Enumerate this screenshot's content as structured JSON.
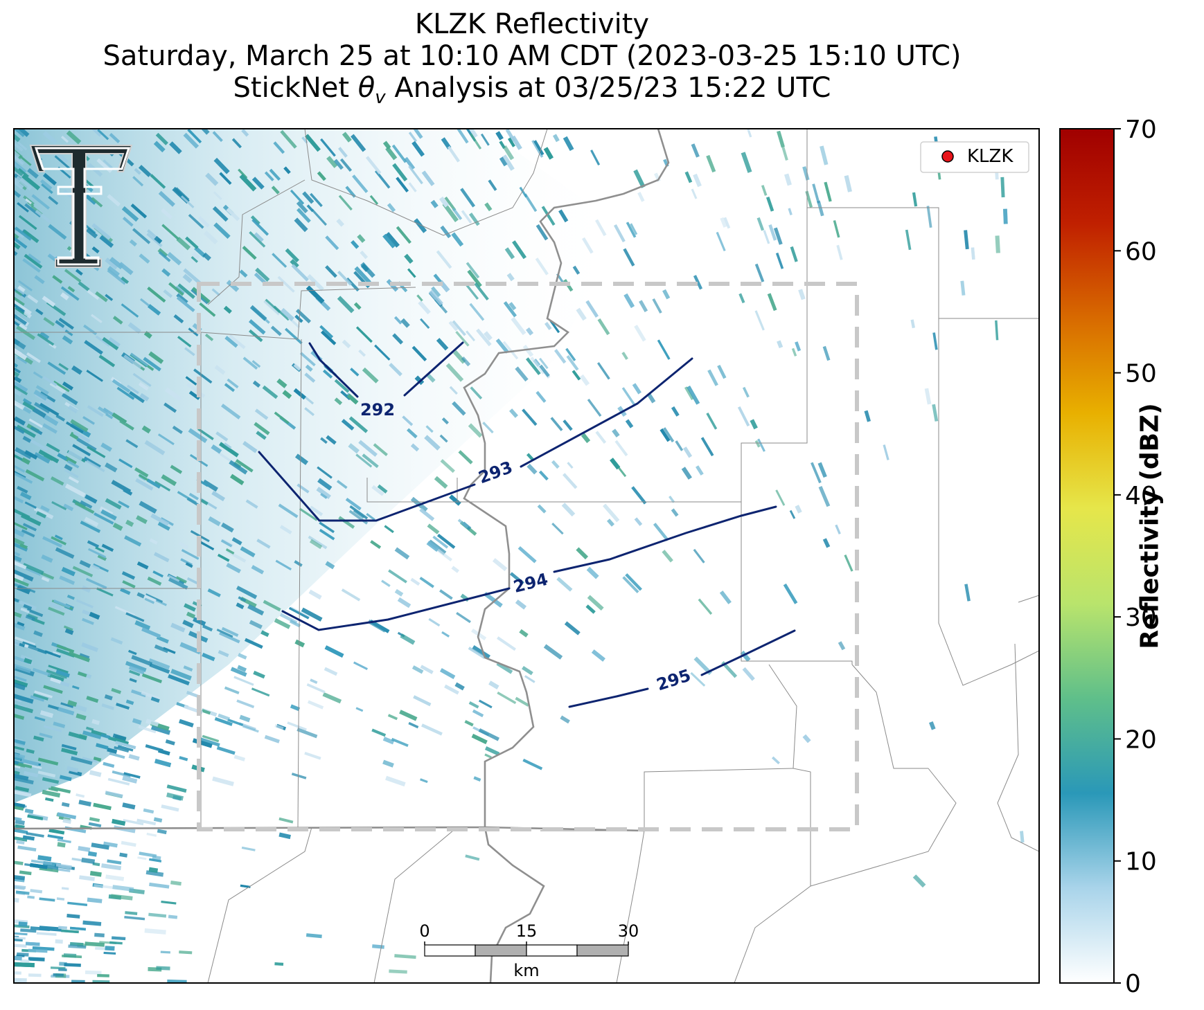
{
  "title": {
    "line1": "KLZK Reflectivity",
    "line2": "Saturday, March 25 at 10:10 AM CDT (2023-03-25 15:10 UTC)",
    "line3_prefix": "StickNet ",
    "line3_symbol": "θ",
    "line3_subscript": "v",
    "line3_suffix": " Analysis at 03/25/23 15:22 UTC"
  },
  "legend": {
    "label": "KLZK",
    "marker_color": "#e8141a"
  },
  "contours": [
    {
      "label": "292",
      "color": "#0d2470"
    },
    {
      "label": "293",
      "color": "#0d2470"
    },
    {
      "label": "294",
      "color": "#0d2470"
    },
    {
      "label": "295",
      "color": "#0d2470"
    }
  ],
  "scalebar": {
    "ticks": [
      "0",
      "15",
      "30"
    ],
    "unit": "km"
  },
  "colorbar": {
    "label": "Reflectivity (dBZ)",
    "min": 0,
    "max": 70,
    "ticks": [
      "0",
      "10",
      "20",
      "30",
      "40",
      "50",
      "60",
      "70"
    ],
    "colors": [
      "#ffffff",
      "#a9d4ea",
      "#2a98b8",
      "#5fbf8a",
      "#b9e46c",
      "#e6e64a",
      "#e8b000",
      "#d86a00",
      "#c02000",
      "#a00000"
    ]
  },
  "logo": {
    "text": "T",
    "name": "Texas Tech Double T"
  },
  "analysis_box": {
    "style": "dashed",
    "color": "#c8c8c8"
  }
}
